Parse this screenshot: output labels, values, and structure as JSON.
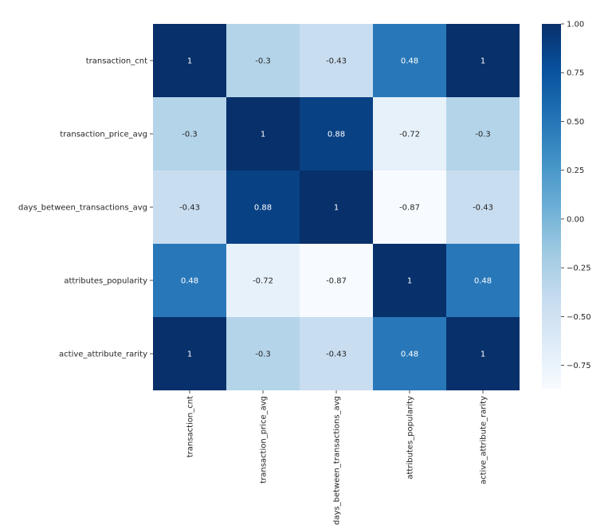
{
  "chart_data": {
    "type": "heatmap",
    "title": "",
    "xlabel": "",
    "ylabel": "",
    "rows": [
      "transaction_cnt",
      "transaction_price_avg",
      "days_between_transactions_avg",
      "attributes_popularity",
      "active_attribute_rarity"
    ],
    "columns": [
      "transaction_cnt",
      "transaction_price_avg",
      "days_between_transactions_avg",
      "attributes_popularity",
      "active_attribute_rarity"
    ],
    "values": [
      [
        1,
        -0.3,
        -0.43,
        0.48,
        1
      ],
      [
        -0.3,
        1,
        0.88,
        -0.72,
        -0.3
      ],
      [
        -0.43,
        0.88,
        1,
        -0.87,
        -0.43
      ],
      [
        0.48,
        -0.72,
        -0.87,
        1,
        0.48
      ],
      [
        1,
        -0.3,
        -0.43,
        0.48,
        1
      ]
    ],
    "annotations": [
      [
        "1",
        "-0.3",
        "-0.43",
        "0.48",
        "1"
      ],
      [
        "-0.3",
        "1",
        "0.88",
        "-0.72",
        "-0.3"
      ],
      [
        "-0.43",
        "0.88",
        "1",
        "-0.87",
        "-0.43"
      ],
      [
        "0.48",
        "-0.72",
        "-0.87",
        "1",
        "0.48"
      ],
      [
        "1",
        "-0.3",
        "-0.43",
        "0.48",
        "1"
      ]
    ],
    "colormap": "Blues",
    "color_range": [
      -0.87,
      1
    ],
    "colorbar_ticks": [
      1.0,
      0.75,
      0.5,
      0.25,
      0.0,
      -0.25,
      -0.5,
      -0.75
    ],
    "colorbar_tick_labels": [
      "1.00",
      "0.75",
      "0.50",
      "0.25",
      "0.00",
      "−0.25",
      "−0.50",
      "−0.75"
    ],
    "x_tick_rotation": "vertical",
    "legend": "colorbar-right",
    "grid": false
  }
}
